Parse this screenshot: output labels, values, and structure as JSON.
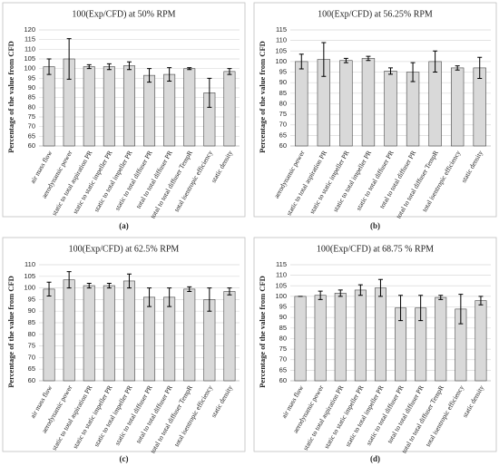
{
  "chart_data": [
    {
      "type": "bar",
      "title": "100(Exp/CFD) at 50% RPM",
      "y_label": "Percentage of the value from CFD",
      "label": "(a)",
      "categories": [
        "air mass flow",
        "aerodynamic power",
        "static to total aspiration PR",
        "static to static impeller PR",
        "static to total impeller PR",
        "static to total diffuser PR",
        "total to total diffuser PR",
        "total to total diffuser TempR",
        "total isentropic efficiency",
        "static density"
      ],
      "values": [
        101,
        105,
        101,
        101,
        101.5,
        96.5,
        97,
        100,
        87.5,
        98.5
      ],
      "errors": [
        4,
        10.5,
        1,
        1.5,
        2,
        3.5,
        3.5,
        0.5,
        7.5,
        1.5
      ],
      "color": "#d9d9d9",
      "ylim": [
        60,
        120
      ],
      "yticks": [
        60,
        65,
        70,
        75,
        80,
        85,
        90,
        95,
        100,
        105,
        110,
        115,
        120
      ],
      "grid": true
    },
    {
      "type": "bar",
      "title": "100(Exp/CFD) at 56.25% RPM",
      "y_label": "Percentage of the value from CFD",
      "label": "(b)",
      "categories": [
        "aerodynamic power",
        "static to total aspiration PR",
        "static to static impeller PR",
        "static to total impeller PR",
        "static to total diffuser PR",
        "total to total diffuser PR",
        "total to total diffuser TempR",
        "total isentropic efficiency",
        "static density"
      ],
      "values": [
        100,
        101,
        100.5,
        101.5,
        95.5,
        95,
        100,
        97,
        97
      ],
      "errors": [
        3.5,
        8,
        1,
        1,
        1.5,
        4.5,
        5,
        1,
        5
      ],
      "color": "#d9d9d9",
      "ylim": [
        60,
        115
      ],
      "yticks": [
        60,
        65,
        70,
        75,
        80,
        85,
        90,
        95,
        100,
        105,
        110,
        115
      ],
      "grid": true
    },
    {
      "type": "bar",
      "title": "100(Exp/CFD) at 62.5% RPM",
      "y_label": "Percentage of the value from CFD",
      "label": "(c)",
      "categories": [
        "air mass flow",
        "aerodynamic power",
        "static to total aspiration PR",
        "static to static impeller PR",
        "static to total impeller PR",
        "static to total diffuser PR",
        "total to total diffuser PR",
        "total to total diffuser TempR",
        "total isentropic efficiency",
        "static density"
      ],
      "values": [
        99.5,
        103.5,
        101,
        101,
        103,
        96,
        96,
        99.5,
        95,
        98.5
      ],
      "errors": [
        3,
        3.5,
        1,
        1,
        3,
        4,
        4,
        1,
        5,
        1.5
      ],
      "color": "#d9d9d9",
      "ylim": [
        60,
        110
      ],
      "yticks": [
        60,
        65,
        70,
        75,
        80,
        85,
        90,
        95,
        100,
        105,
        110
      ],
      "grid": true
    },
    {
      "type": "bar",
      "title": "100(Exp/CFD) at 68.75 % RPM",
      "y_label": "Percentage of the value from CFD",
      "label": "(d)",
      "categories": [
        "air mass flow",
        "aerodynamic power",
        "static to total aspiration PR",
        "static to static impeller PR",
        "static to total impeller PR",
        "static to total diffuser PR",
        "total to total diffuser PR",
        "total to total diffuser TempR",
        "total isentropic efficiency",
        "static density"
      ],
      "values": [
        100,
        100.5,
        101.5,
        103,
        104,
        94.5,
        94.5,
        99.5,
        94,
        98
      ],
      "errors": [
        0,
        2,
        1.5,
        2.5,
        4,
        6,
        6,
        1,
        7,
        2
      ],
      "color": "#d9d9d9",
      "ylim": [
        60,
        115
      ],
      "yticks": [
        60,
        65,
        70,
        75,
        80,
        85,
        90,
        95,
        100,
        105,
        110,
        115
      ],
      "grid": true
    }
  ]
}
